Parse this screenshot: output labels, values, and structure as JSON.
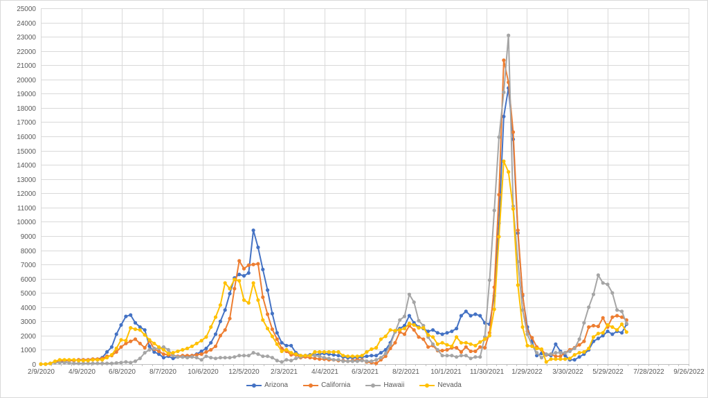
{
  "chart_data": {
    "type": "line",
    "title": "",
    "xlabel": "",
    "ylabel": "",
    "ylim": [
      0,
      25000
    ],
    "y_ticks": [
      0,
      1000,
      2000,
      3000,
      4000,
      5000,
      6000,
      7000,
      8000,
      9000,
      10000,
      11000,
      12000,
      13000,
      14000,
      15000,
      16000,
      17000,
      18000,
      19000,
      20000,
      21000,
      22000,
      23000,
      24000,
      25000
    ],
    "x_tick_labels": [
      "2/9/2020",
      "4/9/2020",
      "6/8/2020",
      "8/7/2020",
      "10/6/2020",
      "12/5/2020",
      "2/3/2021",
      "4/4/2021",
      "6/3/2021",
      "8/2/2021",
      "10/1/2021",
      "11/30/2021",
      "1/29/2022",
      "3/30/2022",
      "5/29/2022",
      "7/28/2022",
      "9/26/2022"
    ],
    "x_tick_step_days": 60,
    "x_start": "2/9/2020",
    "x_step_days": 7,
    "grid": true,
    "legend_position": "bottom",
    "series": [
      {
        "name": "Arizona",
        "color": "#4472C4",
        "values": [
          0,
          0,
          50,
          150,
          200,
          200,
          250,
          250,
          300,
          300,
          300,
          350,
          350,
          450,
          850,
          1200,
          2100,
          2750,
          3350,
          3450,
          2900,
          2600,
          2400,
          1250,
          850,
          700,
          450,
          550,
          400,
          500,
          500,
          550,
          600,
          700,
          900,
          1100,
          1500,
          2100,
          3000,
          3800,
          4950,
          6050,
          6300,
          6200,
          6400,
          9400,
          8200,
          6650,
          5200,
          3550,
          2200,
          1500,
          1300,
          1300,
          800,
          600,
          600,
          650,
          650,
          700,
          750,
          700,
          650,
          600,
          500,
          450,
          450,
          450,
          500,
          550,
          600,
          600,
          800,
          1000,
          1500,
          2300,
          2500,
          2700,
          3400,
          2900,
          2600,
          2500,
          2300,
          2400,
          2200,
          2100,
          2200,
          2300,
          2500,
          3400,
          3700,
          3400,
          3500,
          3400,
          2900,
          2800,
          4800,
          9900,
          17400,
          19400,
          15800,
          9200,
          4800,
          2600,
          1600,
          600,
          750,
          650,
          600,
          1400,
          900,
          600,
          300,
          300,
          500,
          700,
          1000,
          1600,
          1800,
          2000,
          2300,
          2100,
          2300,
          2200,
          2800
        ]
      },
      {
        "name": "California",
        "color": "#ED7D31",
        "values": [
          0,
          0,
          50,
          150,
          200,
          250,
          250,
          250,
          300,
          300,
          300,
          350,
          350,
          400,
          550,
          600,
          850,
          1200,
          1450,
          1600,
          1750,
          1450,
          1150,
          1650,
          1050,
          900,
          700,
          650,
          600,
          550,
          600,
          600,
          600,
          650,
          700,
          850,
          1000,
          1250,
          2000,
          2400,
          3200,
          5300,
          7250,
          6700,
          6950,
          7000,
          7050,
          4700,
          3500,
          2450,
          1750,
          1100,
          900,
          650,
          650,
          450,
          500,
          450,
          400,
          350,
          350,
          300,
          300,
          250,
          250,
          200,
          250,
          300,
          300,
          150,
          100,
          50,
          300,
          550,
          1100,
          1500,
          2250,
          2100,
          2700,
          2400,
          1900,
          1750,
          1200,
          1300,
          950,
          950,
          1000,
          1150,
          1150,
          850,
          1200,
          900,
          900,
          1200,
          1150,
          2200,
          5400,
          11900,
          21350,
          19800,
          16300,
          9400,
          4900,
          2300,
          1850,
          1200,
          1000,
          650,
          700,
          550,
          550,
          800,
          1000,
          1150,
          1350,
          1600,
          2600,
          2700,
          2650,
          3250,
          2600,
          3300,
          3400,
          3300,
          3100
        ]
      },
      {
        "name": "Hawaii",
        "color": "#A5A5A5",
        "values": [
          0,
          0,
          50,
          100,
          100,
          100,
          80,
          50,
          50,
          50,
          50,
          50,
          50,
          50,
          50,
          50,
          80,
          100,
          150,
          100,
          200,
          400,
          800,
          1000,
          1100,
          1100,
          1200,
          1000,
          600,
          500,
          500,
          450,
          500,
          450,
          300,
          550,
          450,
          400,
          450,
          450,
          450,
          500,
          600,
          600,
          600,
          800,
          700,
          550,
          550,
          450,
          250,
          150,
          300,
          250,
          400,
          500,
          600,
          600,
          600,
          550,
          450,
          400,
          300,
          300,
          200,
          200,
          200,
          200,
          250,
          200,
          200,
          300,
          450,
          750,
          1350,
          2250,
          3100,
          3350,
          4900,
          4350,
          3050,
          2700,
          1900,
          1400,
          1000,
          600,
          600,
          600,
          500,
          600,
          600,
          400,
          500,
          500,
          1900,
          5900,
          10800,
          15950,
          19100,
          23100,
          11100,
          7200,
          3800,
          2100,
          1300,
          800,
          450,
          700,
          700,
          800,
          800,
          800,
          900,
          1100,
          1750,
          2900,
          4000,
          4900,
          6250,
          5700,
          5600,
          5000,
          3800,
          3700,
          2850
        ]
      },
      {
        "name": "Nevada",
        "color": "#FFC000",
        "values": [
          0,
          0,
          50,
          200,
          300,
          300,
          300,
          300,
          250,
          250,
          250,
          300,
          300,
          300,
          450,
          650,
          1100,
          1700,
          1650,
          2550,
          2450,
          2400,
          2050,
          1700,
          1450,
          1200,
          1000,
          750,
          800,
          900,
          1000,
          1100,
          1250,
          1450,
          1650,
          1900,
          2600,
          3300,
          4150,
          5700,
          5300,
          5950,
          5850,
          4500,
          4300,
          5700,
          4500,
          3100,
          2500,
          1950,
          1400,
          900,
          1000,
          800,
          700,
          600,
          600,
          600,
          850,
          850,
          850,
          850,
          850,
          850,
          600,
          550,
          550,
          550,
          600,
          850,
          1050,
          1150,
          1750,
          1950,
          2400,
          2350,
          2400,
          2500,
          2850,
          2750,
          2550,
          2550,
          2050,
          1900,
          1400,
          1500,
          1350,
          1250,
          1900,
          1500,
          1500,
          1400,
          1300,
          1550,
          1750,
          2000,
          3850,
          8950,
          14250,
          13500,
          10900,
          5550,
          2600,
          1300,
          1250,
          1100,
          1050,
          150,
          350,
          350,
          350,
          350,
          400,
          650,
          800,
          850,
          1100,
          1900,
          2150,
          2200,
          2750,
          2600,
          2400,
          2800,
          2250
        ]
      }
    ]
  }
}
